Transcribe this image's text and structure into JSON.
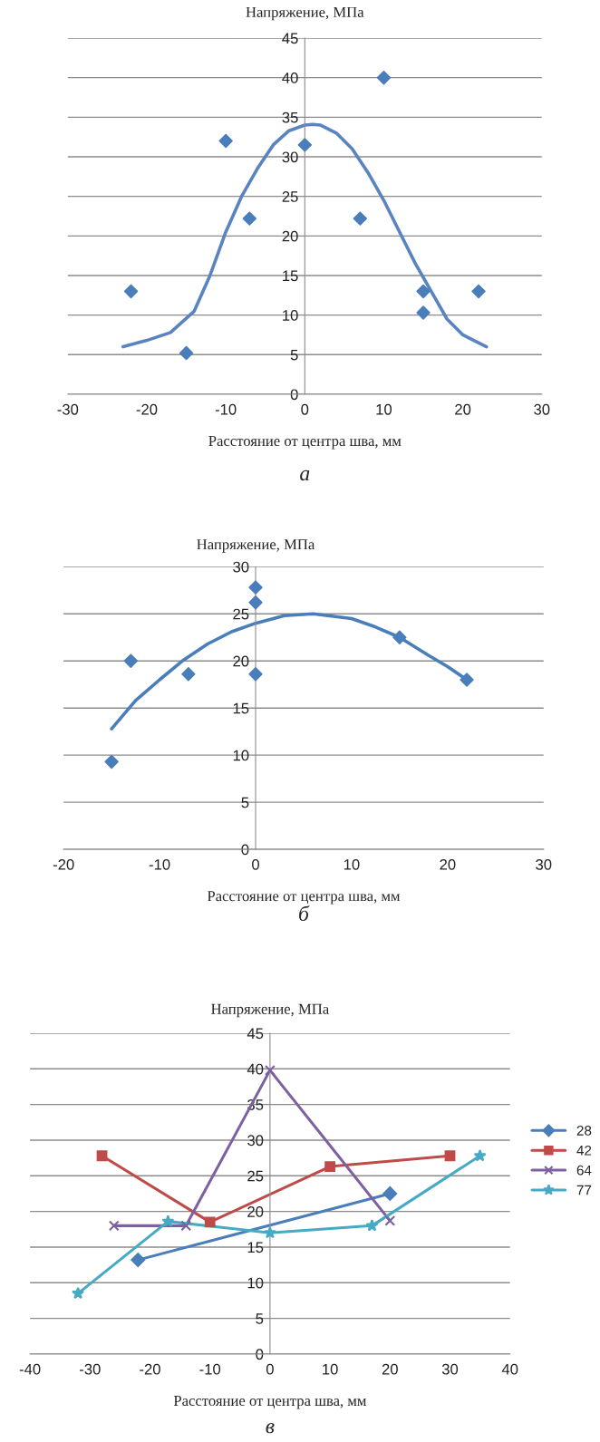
{
  "chart_data": [
    {
      "type": "scatter",
      "ylabel": "Напряжение, МПа",
      "xlabel": "Расстояние от центра шва, мм",
      "annotations": [
        "а"
      ],
      "xlim": [
        -30,
        30
      ],
      "xticks": [
        -30,
        -20,
        -10,
        0,
        10,
        20,
        30
      ],
      "ylim": [
        0,
        45
      ],
      "yticks": [
        0,
        5,
        10,
        15,
        20,
        25,
        30,
        35,
        40,
        45
      ],
      "grid": "y",
      "legend": false,
      "series": [
        {
          "type": "scatter",
          "marker": "diamond",
          "color": "#4a7ebb",
          "x": [
            -22,
            -15,
            -10,
            -7,
            0,
            7,
            10,
            15,
            15,
            22
          ],
          "values": [
            13,
            5.2,
            32,
            22.2,
            31.5,
            22.2,
            40,
            13,
            10.3,
            13
          ]
        },
        {
          "type": "line",
          "marker": "none",
          "color": "#5a84c0",
          "x": [
            -23,
            -20,
            -17,
            -14,
            -12,
            -10,
            -8,
            -6,
            -4,
            -2,
            0,
            1,
            2,
            4,
            6,
            8,
            10,
            12,
            14,
            16,
            18,
            20,
            21,
            23
          ],
          "values": [
            6,
            6.8,
            7.8,
            10.5,
            15,
            20.5,
            25,
            28.5,
            31.5,
            33.3,
            34,
            34.1,
            34,
            33,
            31,
            28,
            24.5,
            20.5,
            16.5,
            13,
            9.5,
            7.5,
            7,
            6
          ]
        }
      ]
    },
    {
      "type": "scatter",
      "ylabel": "Напряжение, МПа",
      "xlabel": "Расстояние от центра шва, мм",
      "annotations": [
        "б"
      ],
      "xlim": [
        -20,
        30
      ],
      "xticks": [
        -20,
        -10,
        0,
        10,
        20,
        30
      ],
      "ylim": [
        0,
        30
      ],
      "yticks": [
        0,
        5,
        10,
        15,
        20,
        25,
        30
      ],
      "grid": "y",
      "legend": false,
      "series": [
        {
          "type": "scatter",
          "marker": "diamond",
          "color": "#4a7ebb",
          "x": [
            -15,
            -13,
            -7,
            0,
            0,
            0,
            15,
            22
          ],
          "values": [
            9.3,
            20,
            18.6,
            27.8,
            26.2,
            18.6,
            22.5,
            18
          ]
        },
        {
          "type": "line",
          "marker": "none",
          "color": "#4a7ebb",
          "x": [
            -15,
            -12.5,
            -10,
            -7.5,
            -5,
            -2.5,
            0,
            3,
            6,
            10,
            12.5,
            15,
            18,
            20,
            22
          ],
          "values": [
            12.8,
            15.8,
            18,
            20.1,
            21.8,
            23.1,
            24,
            24.8,
            25,
            24.5,
            23.6,
            22.5,
            20.6,
            19.4,
            18
          ]
        }
      ]
    },
    {
      "type": "line",
      "ylabel": "Напряжение, МПа",
      "xlabel": "Расстояние от центра шва, мм",
      "annotations": [
        "в"
      ],
      "xlim": [
        -40,
        40
      ],
      "xticks": [
        -40,
        -30,
        -20,
        -10,
        0,
        10,
        20,
        30,
        40
      ],
      "ylim": [
        0,
        45
      ],
      "yticks": [
        0,
        5,
        10,
        15,
        20,
        25,
        30,
        35,
        40,
        45
      ],
      "grid": "y",
      "legend": "right",
      "series": [
        {
          "name": "28",
          "marker": "diamond",
          "color": "#4a7ebb",
          "x": [
            -22,
            20
          ],
          "values": [
            13.2,
            22.5
          ]
        },
        {
          "name": "42",
          "marker": "square",
          "color": "#be4b48",
          "x": [
            -28,
            -10,
            10,
            30
          ],
          "values": [
            27.8,
            18.5,
            26.3,
            27.8
          ]
        },
        {
          "name": "64",
          "marker": "cross",
          "color": "#7d60a0",
          "x": [
            -26,
            -14,
            0,
            20
          ],
          "values": [
            18,
            18,
            39.8,
            18.7
          ]
        },
        {
          "name": "77",
          "marker": "star",
          "color": "#46aac5",
          "x": [
            -32,
            -17,
            0,
            17,
            35
          ],
          "values": [
            8.5,
            18.6,
            17,
            18,
            27.8
          ]
        }
      ]
    }
  ]
}
